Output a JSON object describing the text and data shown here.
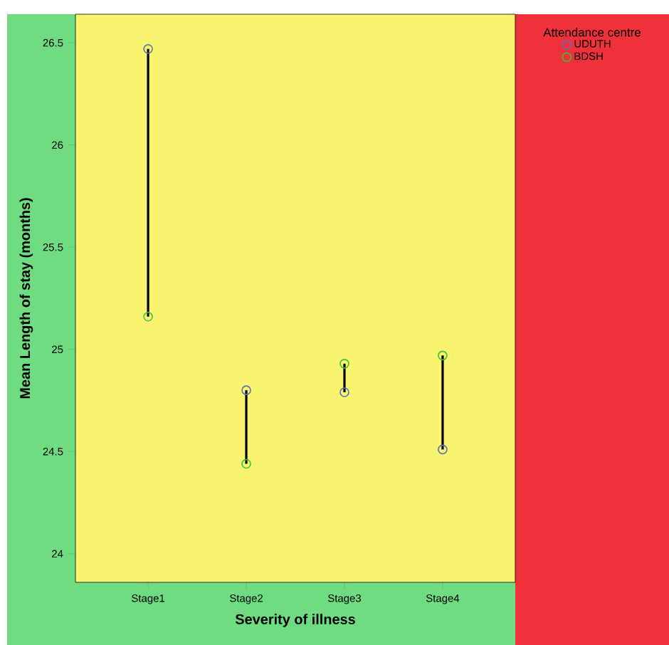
{
  "chart_data": {
    "type": "scatter",
    "xlabel": "Severity of illness",
    "ylabel": "Mean Length of stay (months)",
    "legend_title": "Attendance centre",
    "categories": [
      "Stage1",
      "Stage2",
      "Stage3",
      "Stage4"
    ],
    "series": [
      {
        "name": "UDUTH",
        "color": "#5b6fc0",
        "values": [
          26.47,
          24.8,
          24.79,
          24.51
        ]
      },
      {
        "name": "BDSH",
        "color": "#3cc43c",
        "values": [
          25.16,
          24.44,
          24.93,
          24.97
        ]
      }
    ],
    "ylim": [
      23.86,
      26.64
    ],
    "yticks": [
      24,
      24.5,
      25,
      25.5,
      26,
      26.5
    ],
    "legend": "right",
    "marker": "circle",
    "grid": false
  }
}
